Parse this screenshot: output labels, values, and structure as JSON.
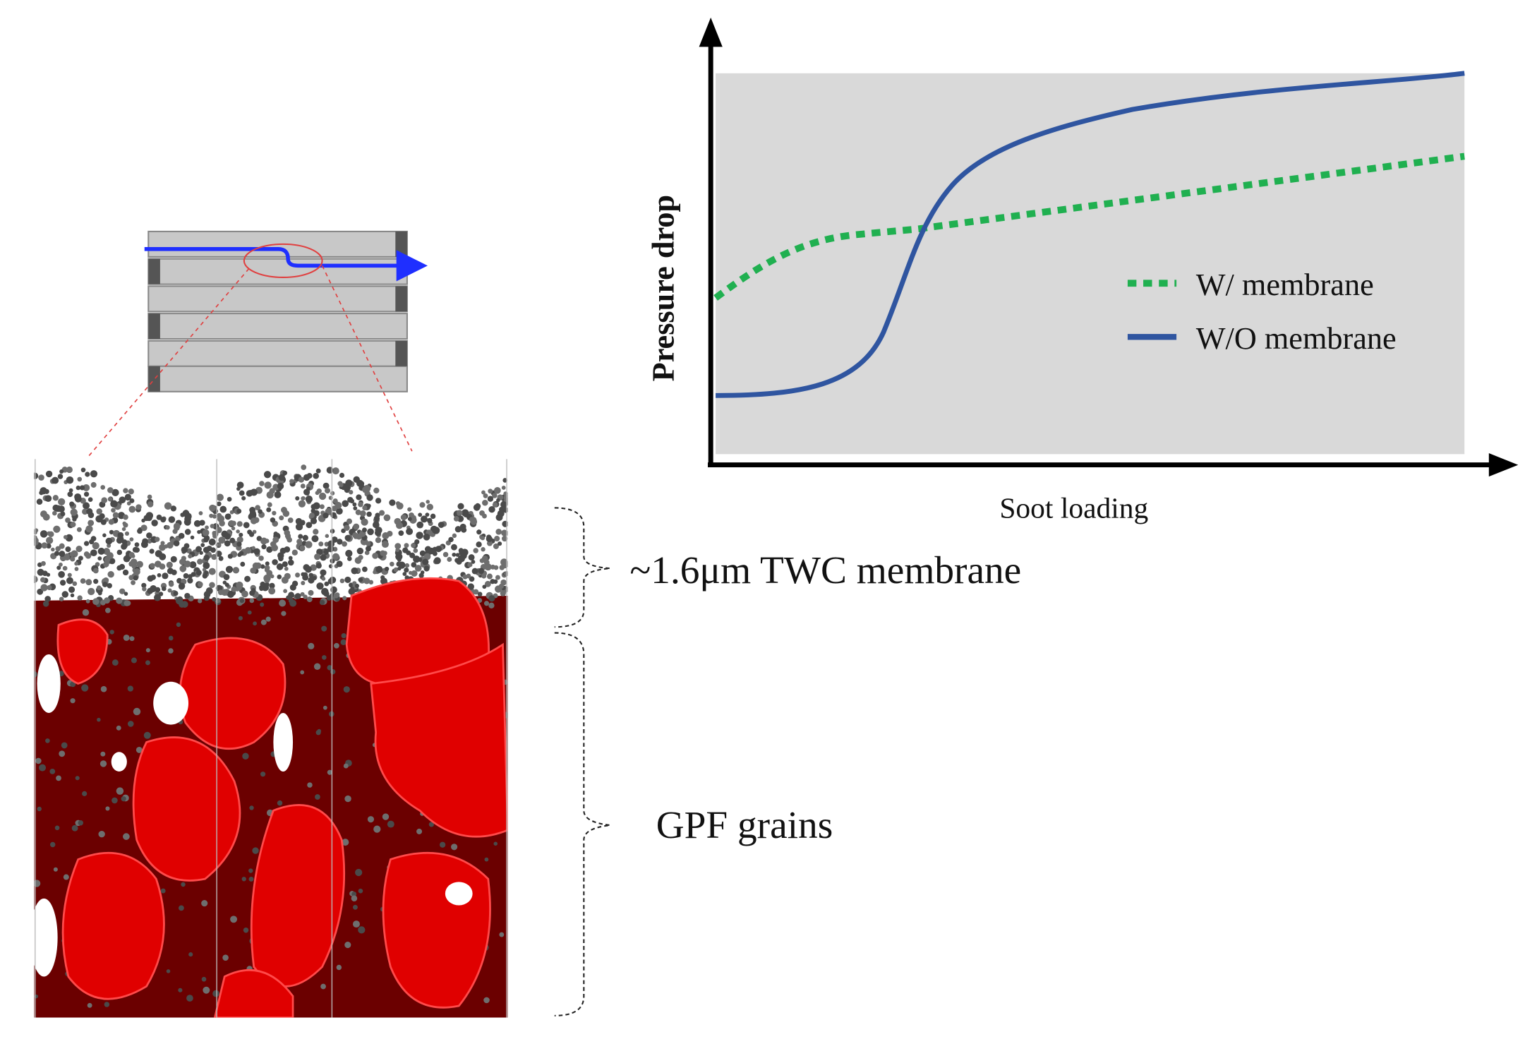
{
  "chart": {
    "y_axis_label": "Pressure drop",
    "x_axis_label": "Soot loading",
    "legend": [
      "W/ membrane",
      "W/O membrane"
    ]
  },
  "annotations": {
    "membrane": "~1.6μm TWC membrane",
    "grains": "GPF grains"
  }
}
